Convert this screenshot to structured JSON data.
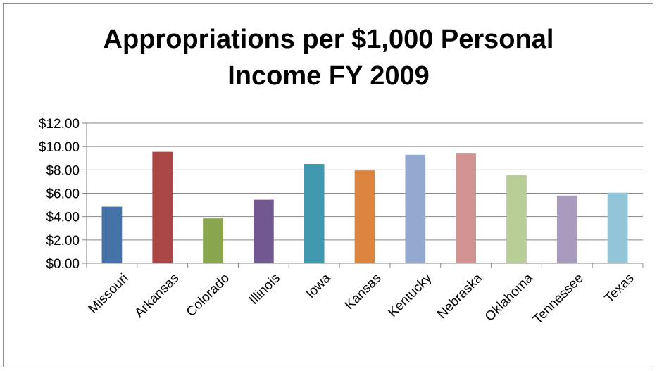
{
  "chart_data": {
    "type": "bar",
    "title_lines": [
      "Appropriations per $1,000 Personal",
      "Income FY 2009"
    ],
    "xlabel": "",
    "ylabel": "",
    "categories": [
      "Missouri",
      "Arkansas",
      "Colorado",
      "Illinois",
      "Iowa",
      "Kansas",
      "Kentucky",
      "Nebraska",
      "Oklahoma",
      "Tennessee",
      "Texas"
    ],
    "values": [
      4.85,
      9.55,
      3.85,
      5.45,
      8.5,
      7.95,
      9.3,
      9.4,
      7.55,
      5.8,
      6.05
    ],
    "colors": [
      "#4572A7",
      "#AA4643",
      "#89A54E",
      "#71588F",
      "#4198AF",
      "#DB843D",
      "#93A9CF",
      "#D19392",
      "#B9CD96",
      "#A99BBD",
      "#92C5D8"
    ],
    "ylim": [
      0,
      12
    ],
    "yticks": [
      0,
      2,
      4,
      6,
      8,
      10,
      12
    ],
    "ytick_labels": [
      "$0.00",
      "$2.00",
      "$4.00",
      "$6.00",
      "$8.00",
      "$10.00",
      "$12.00"
    ],
    "grid": true,
    "legend": "none"
  }
}
